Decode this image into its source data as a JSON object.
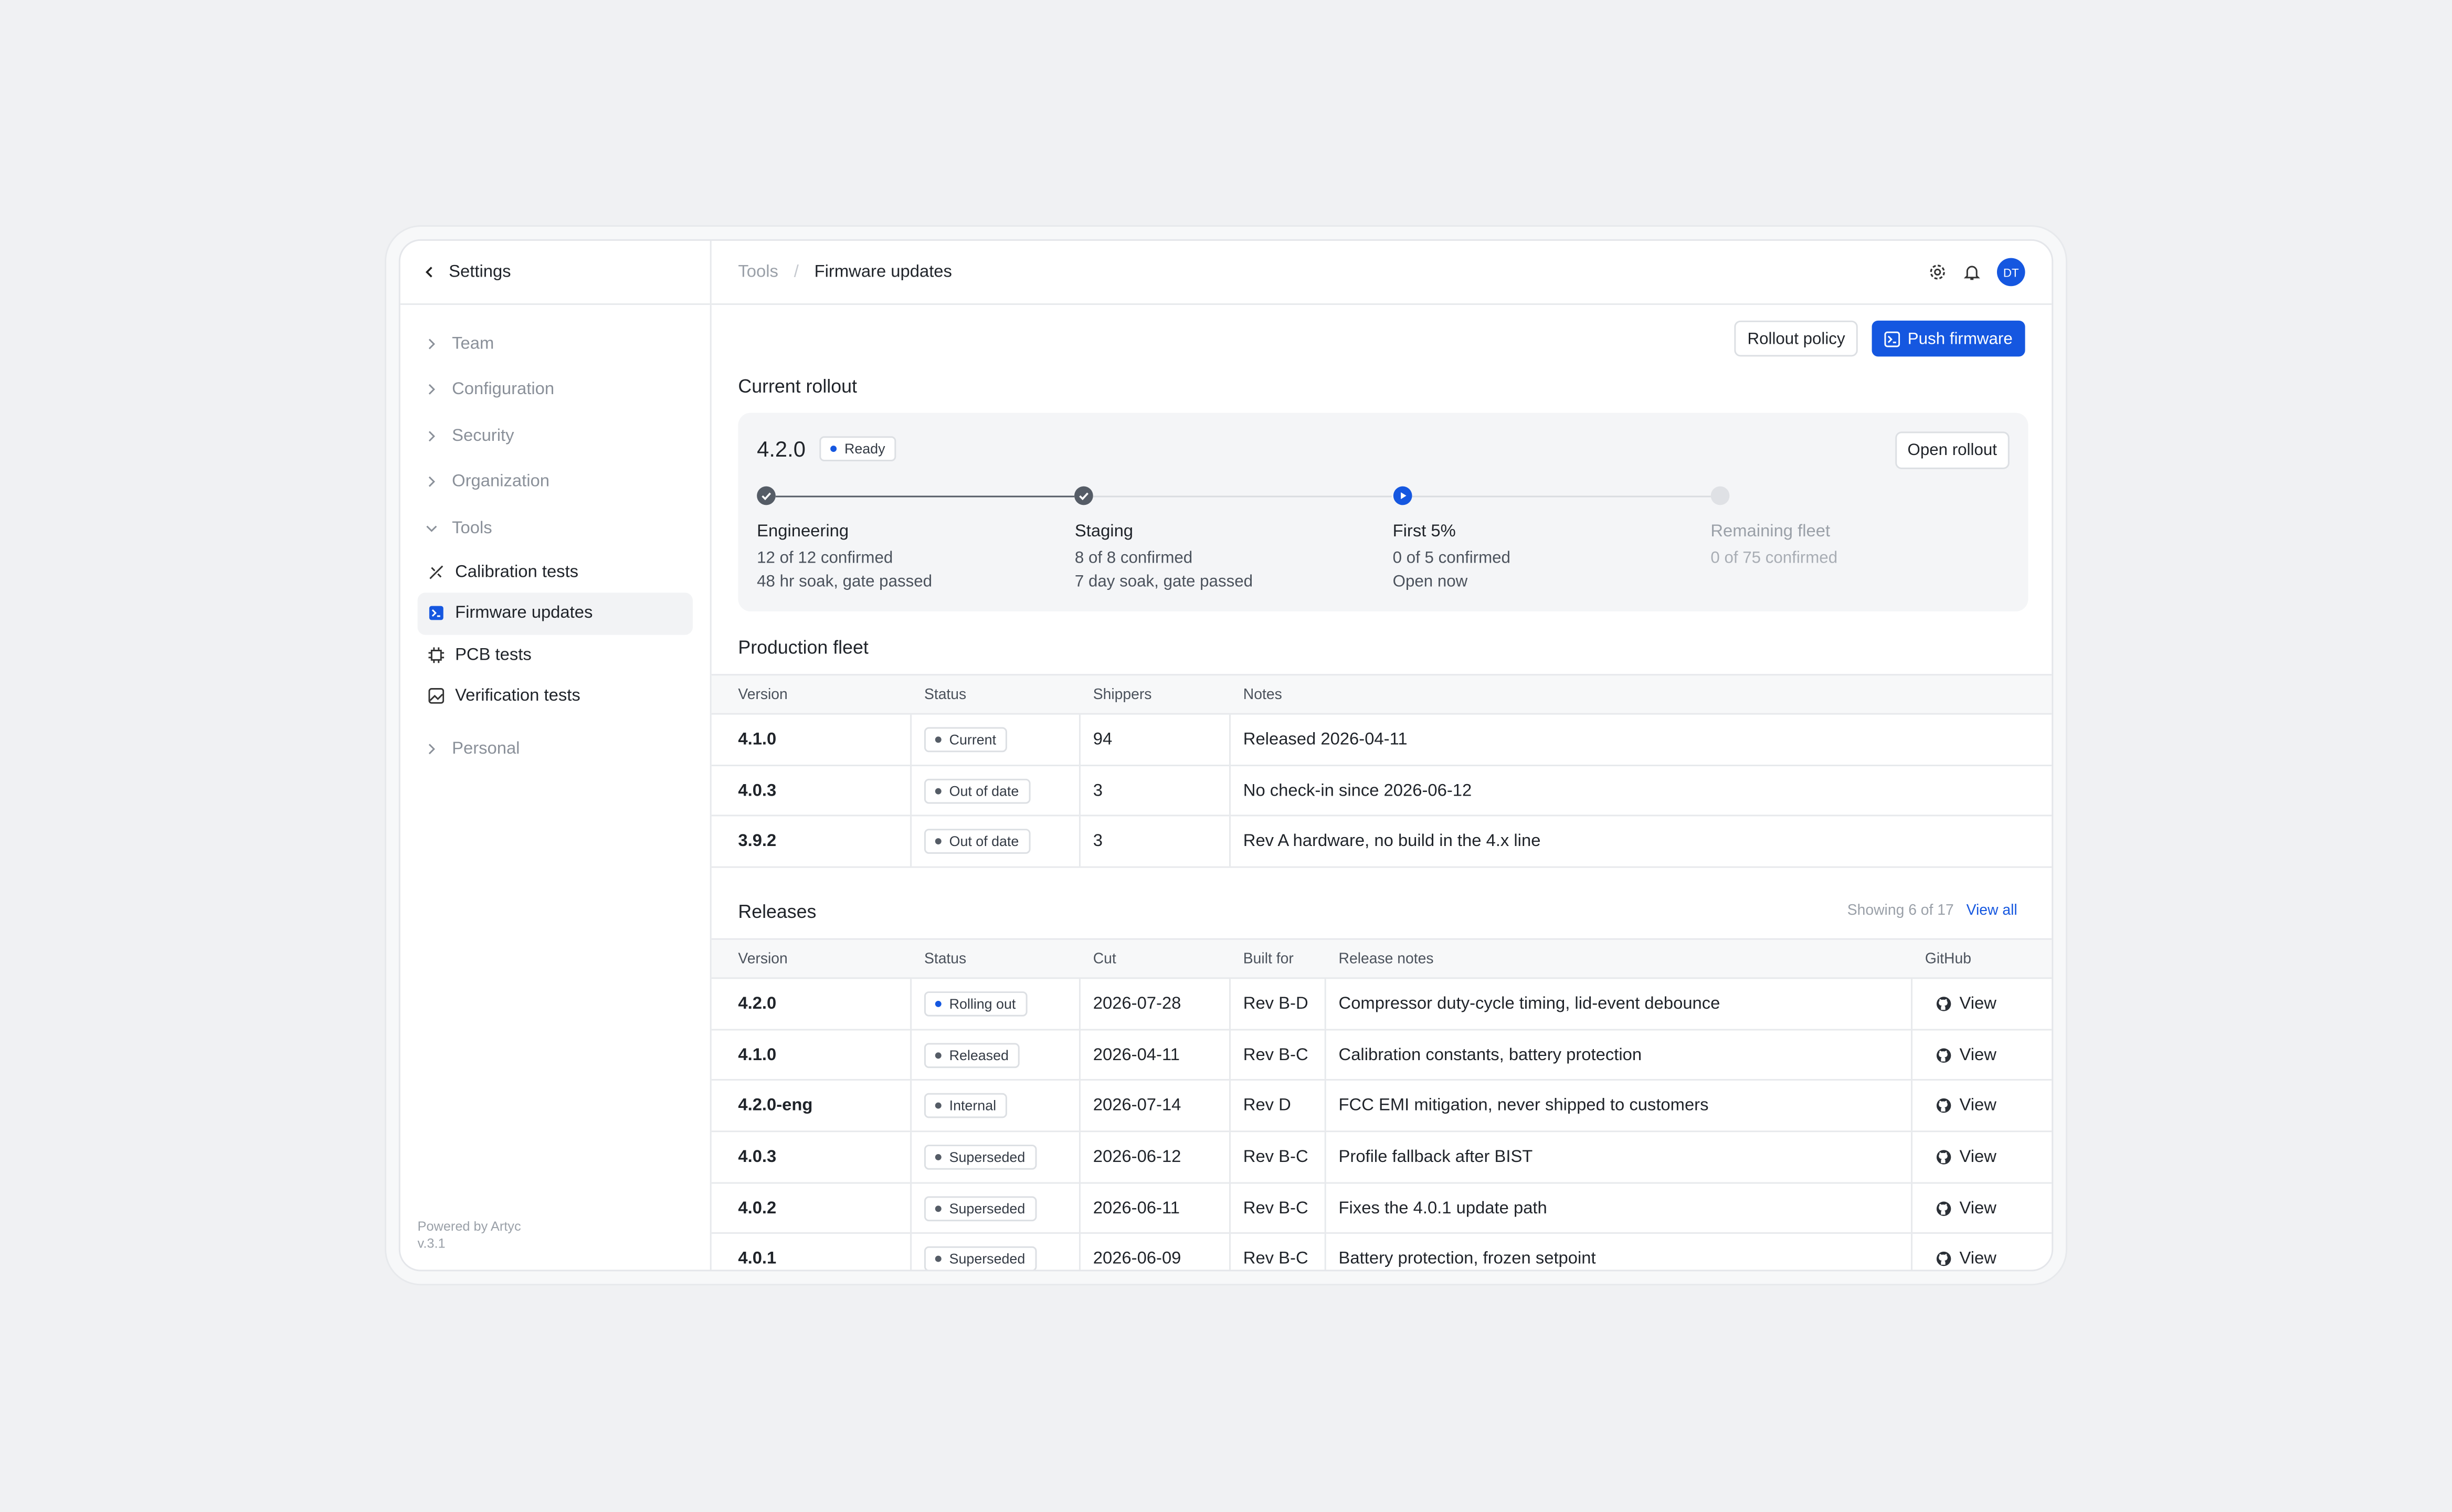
{
  "sidebar": {
    "back": "Settings",
    "nav": [
      {
        "label": "Team"
      },
      {
        "label": "Configuration"
      },
      {
        "label": "Security"
      },
      {
        "label": "Organization"
      },
      {
        "label": "Tools",
        "children": [
          {
            "label": "Calibration tests",
            "active": false
          },
          {
            "label": "Firmware updates",
            "active": true
          },
          {
            "label": "PCB tests",
            "active": false
          },
          {
            "label": "Verification tests",
            "active": false
          }
        ]
      },
      {
        "label": "Personal"
      }
    ],
    "footer": [
      "Powered by Artyc",
      "v.3.1"
    ]
  },
  "header": {
    "breadcrumb": [
      "Tools",
      "Firmware updates"
    ],
    "avatar": "DT"
  },
  "actions": [
    "Rollout policy",
    "Push firmware"
  ],
  "rollout": {
    "title": "Current rollout",
    "version": "4.2.0",
    "status": "Ready",
    "button": "Open rollout",
    "stages": [
      {
        "name": "Engineering",
        "lines": [
          "12 of 12 confirmed",
          "48 hr soak, gate passed"
        ],
        "state": "done"
      },
      {
        "name": "Staging",
        "lines": [
          "8 of 8 confirmed",
          "7 day soak, gate passed"
        ],
        "state": "done"
      },
      {
        "name": "First 5%",
        "lines": [
          "0 of 5 confirmed",
          "Open now"
        ],
        "state": "active"
      },
      {
        "name": "Remaining fleet",
        "lines": [
          "0 of 75 confirmed"
        ],
        "state": "pending"
      }
    ]
  },
  "fleet": {
    "title": "Production fleet",
    "columns": [
      "Version",
      "Status",
      "Shippers",
      "Notes"
    ],
    "rows": [
      [
        "4.1.0",
        "Current",
        94,
        "Released 2026-04-11"
      ],
      [
        "4.0.3",
        "Out of date",
        3,
        "No check-in since 2026-06-12"
      ],
      [
        "3.9.2",
        "Out of date",
        3,
        "Rev A hardware, no build in the 4.x line"
      ]
    ]
  },
  "releases": {
    "title": "Releases",
    "showing": "Showing 6 of 17",
    "view_all": "View all",
    "columns": [
      "Version",
      "Status",
      "Cut",
      "Built for",
      "Release notes",
      "GitHub"
    ],
    "rows": [
      [
        "4.2.0",
        "Rolling out",
        "2026-07-28",
        "Rev B-D",
        "Compressor duty-cycle timing, lid-event debounce",
        "View"
      ],
      [
        "4.1.0",
        "Released",
        "2026-04-11",
        "Rev B-C",
        "Calibration constants, battery protection",
        "View"
      ],
      [
        "4.2.0-eng",
        "Internal",
        "2026-07-14",
        "Rev D",
        "FCC EMI mitigation, never shipped to customers",
        "View"
      ],
      [
        "4.0.3",
        "Superseded",
        "2026-06-12",
        "Rev B-C",
        "Profile fallback after BIST",
        "View"
      ],
      [
        "4.0.2",
        "Superseded",
        "2026-06-11",
        "Rev B-C",
        "Fixes the 4.0.1 update path",
        "View"
      ],
      [
        "4.0.1",
        "Superseded",
        "2026-06-09",
        "Rev B-C",
        "Battery protection, frozen setpoint",
        "View"
      ]
    ]
  }
}
